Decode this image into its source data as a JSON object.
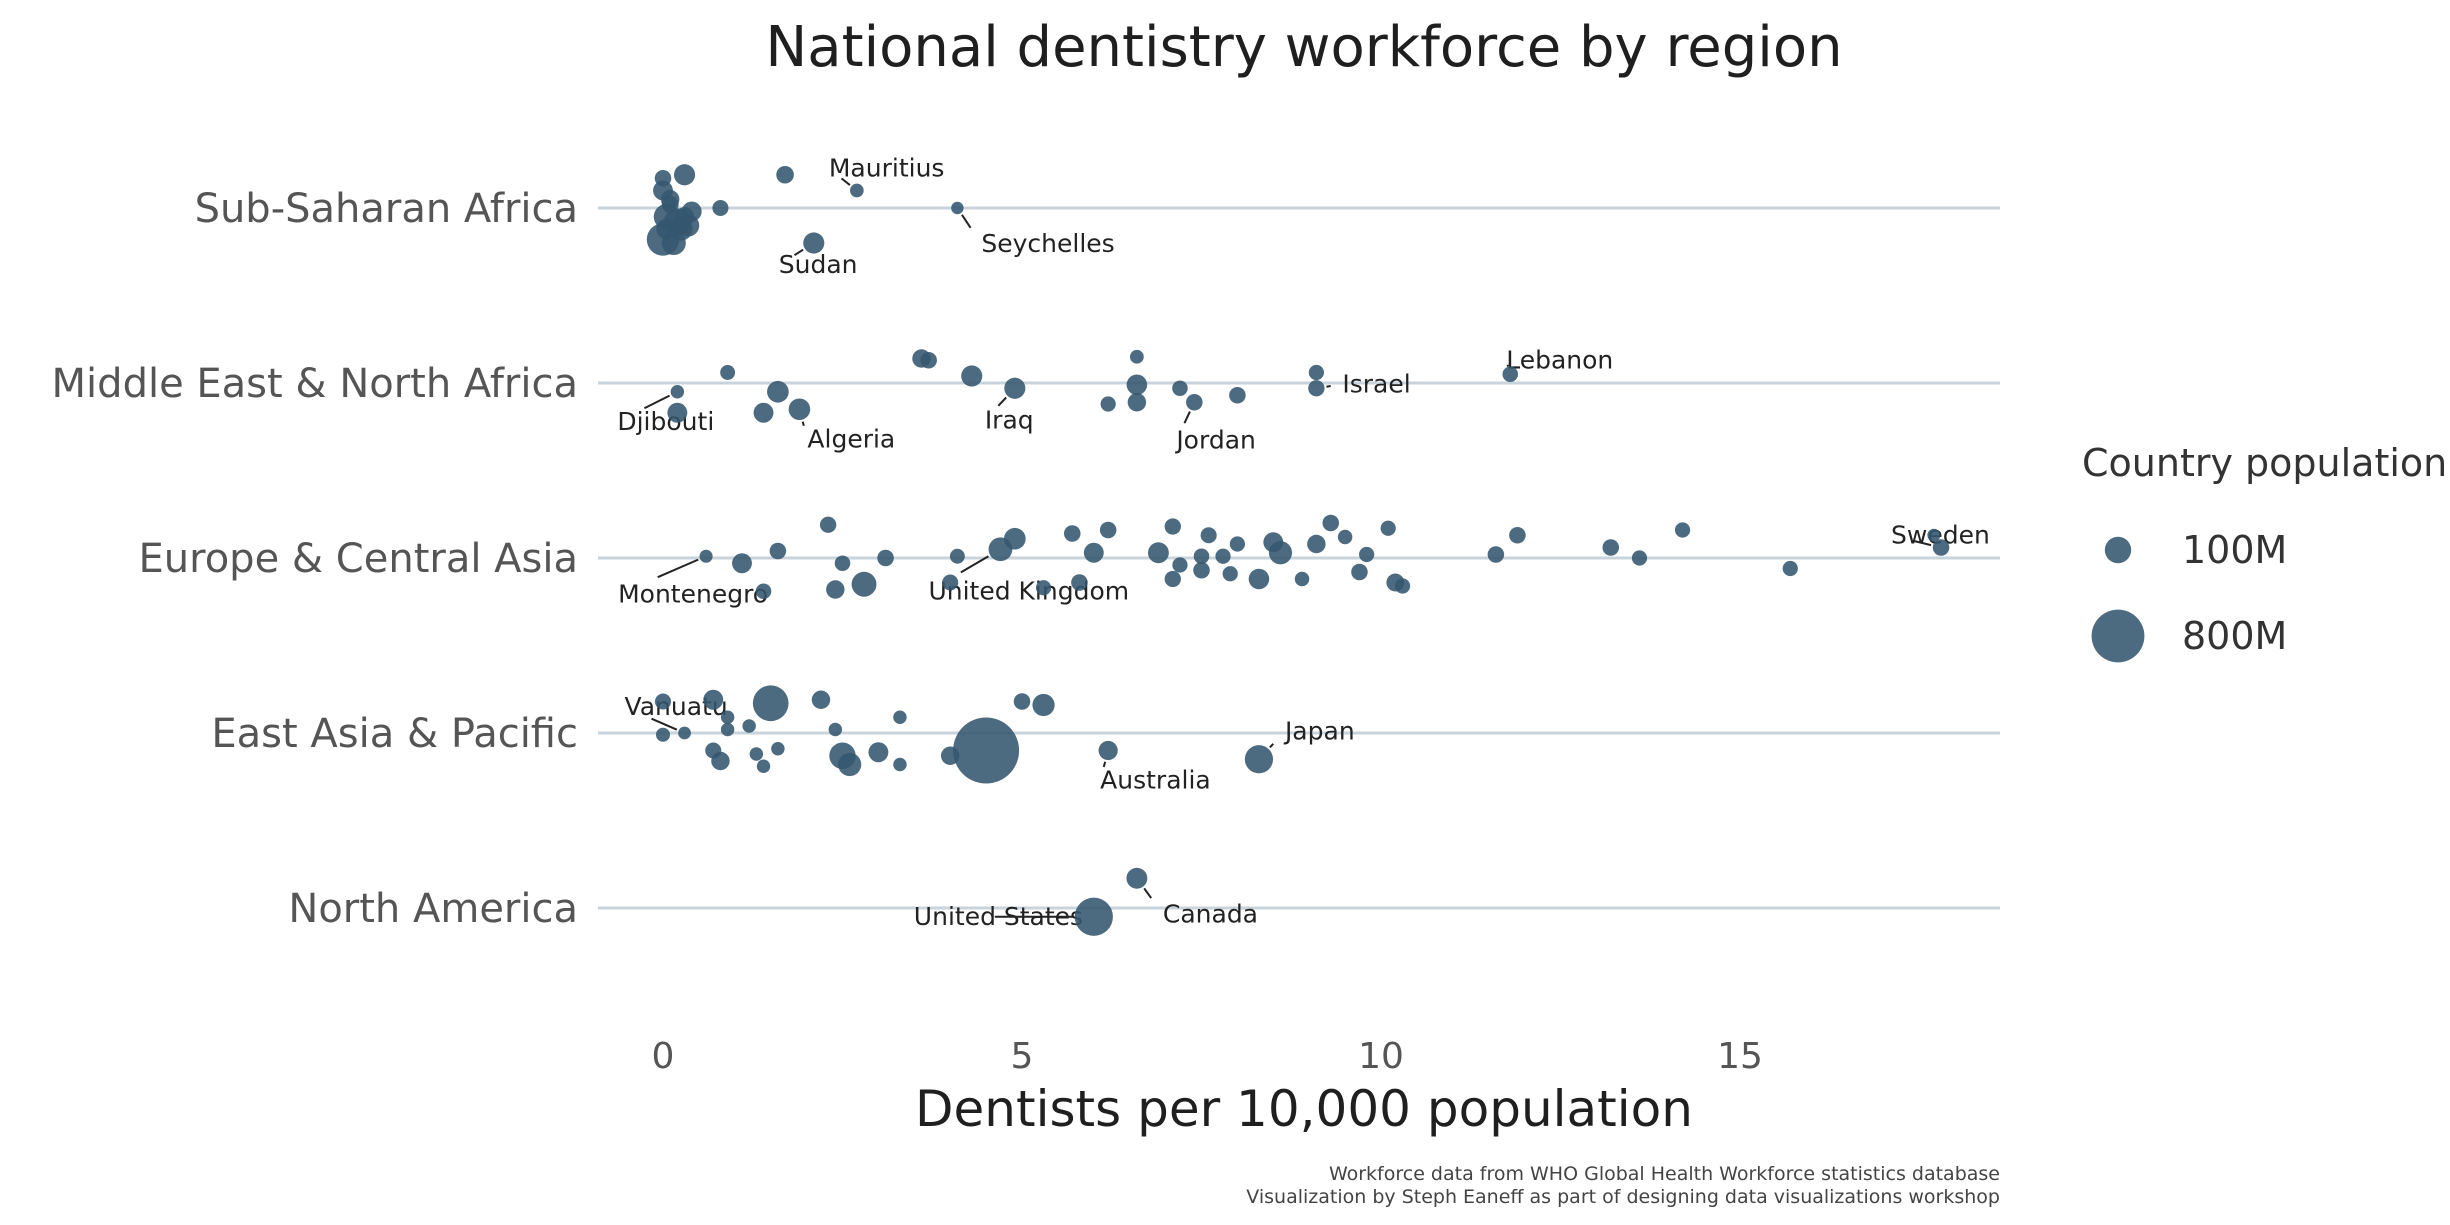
{
  "chart_data": {
    "type": "scatter",
    "title": "National dentistry workforce by region",
    "xlabel": "Dentists per 10,000 population",
    "ylabel": "",
    "xlim": [
      -0.9,
      18.6
    ],
    "x_ticks": [
      0,
      5,
      10,
      15
    ],
    "categories": [
      "Sub-Saharan Africa",
      "Middle East & North Africa",
      "Europe & Central Asia",
      "East Asia & Pacific",
      "North America"
    ],
    "grid": "horizontal region lines only",
    "point_color": "#34566e",
    "legend": {
      "title": "Country population",
      "placement": "right",
      "entries": [
        {
          "label": "100M",
          "population_m": 100
        },
        {
          "label": "800M",
          "population_m": 800
        }
      ]
    },
    "caption": [
      "Workforce data from WHO Global Health Workforce statistics database",
      "Visualization by Steph Eaneff as part of designing data visualizations workshop"
    ],
    "series": [
      {
        "region": "Sub-Saharan Africa",
        "points": [
          {
            "x": 0.0,
            "jitter": 0.17,
            "pop": 10
          },
          {
            "x": 0.3,
            "jitter": 0.19,
            "pop": 40
          },
          {
            "x": 1.7,
            "jitter": 0.19,
            "pop": 15
          },
          {
            "x": 2.7,
            "jitter": 0.1,
            "pop": 1.3,
            "label": "Mauritius"
          },
          {
            "x": 0.8,
            "jitter": 0.0,
            "pop": 8
          },
          {
            "x": 4.1,
            "jitter": 0.0,
            "pop": 0.1,
            "label": "Seychelles"
          },
          {
            "x": 2.1,
            "jitter": -0.2,
            "pop": 40,
            "label": "Sudan"
          },
          {
            "x": 0.0,
            "jitter": 0.1,
            "pop": 30
          },
          {
            "x": 0.1,
            "jitter": 0.05,
            "pop": 20
          },
          {
            "x": 0.05,
            "jitter": -0.05,
            "pop": 90
          },
          {
            "x": 0.2,
            "jitter": -0.08,
            "pop": 110
          },
          {
            "x": 0.25,
            "jitter": -0.12,
            "pop": 60
          },
          {
            "x": 0.35,
            "jitter": -0.1,
            "pop": 50
          },
          {
            "x": 0.0,
            "jitter": -0.18,
            "pop": 200
          },
          {
            "x": 0.15,
            "jitter": -0.2,
            "pop": 70
          },
          {
            "x": 0.3,
            "jitter": -0.05,
            "pop": 25
          },
          {
            "x": 0.4,
            "jitter": -0.02,
            "pop": 30
          },
          {
            "x": 0.1,
            "jitter": 0.02,
            "pop": 12
          },
          {
            "x": 0.05,
            "jitter": -0.12,
            "pop": 35
          }
        ]
      },
      {
        "region": "Middle East & North Africa",
        "points": [
          {
            "x": 0.2,
            "jitter": -0.05,
            "pop": 1.0,
            "label": "Djibouti"
          },
          {
            "x": 0.2,
            "jitter": -0.17,
            "pop": 30
          },
          {
            "x": 0.9,
            "jitter": 0.06,
            "pop": 4
          },
          {
            "x": 1.6,
            "jitter": -0.05,
            "pop": 45
          },
          {
            "x": 1.4,
            "jitter": -0.17,
            "pop": 30
          },
          {
            "x": 1.9,
            "jitter": -0.15,
            "pop": 44,
            "label": "Algeria"
          },
          {
            "x": 3.6,
            "jitter": 0.14,
            "pop": 20
          },
          {
            "x": 3.7,
            "jitter": 0.13,
            "pop": 10
          },
          {
            "x": 4.3,
            "jitter": 0.04,
            "pop": 40
          },
          {
            "x": 4.9,
            "jitter": -0.03,
            "pop": 40,
            "label": "Iraq"
          },
          {
            "x": 6.6,
            "jitter": 0.15,
            "pop": 1.5
          },
          {
            "x": 6.6,
            "jitter": -0.01,
            "pop": 35
          },
          {
            "x": 6.6,
            "jitter": -0.11,
            "pop": 20
          },
          {
            "x": 6.2,
            "jitter": -0.12,
            "pop": 5
          },
          {
            "x": 7.2,
            "jitter": -0.03,
            "pop": 6
          },
          {
            "x": 7.4,
            "jitter": -0.11,
            "pop": 10,
            "label": "Jordan"
          },
          {
            "x": 8.0,
            "jitter": -0.07,
            "pop": 10
          },
          {
            "x": 9.1,
            "jitter": 0.06,
            "pop": 5
          },
          {
            "x": 9.1,
            "jitter": -0.03,
            "pop": 9,
            "label": "Israel"
          },
          {
            "x": 11.8,
            "jitter": 0.05,
            "pop": 6,
            "label": "Lebanon"
          }
        ]
      },
      {
        "region": "Europe & Central Asia",
        "points": [
          {
            "x": 0.6,
            "jitter": 0.01,
            "pop": 0.6,
            "label": "Montenegro"
          },
          {
            "x": 1.1,
            "jitter": -0.03,
            "pop": 30
          },
          {
            "x": 1.4,
            "jitter": -0.19,
            "pop": 6
          },
          {
            "x": 1.6,
            "jitter": 0.04,
            "pop": 10
          },
          {
            "x": 2.3,
            "jitter": 0.19,
            "pop": 9
          },
          {
            "x": 2.4,
            "jitter": -0.18,
            "pop": 20
          },
          {
            "x": 2.5,
            "jitter": -0.03,
            "pop": 6
          },
          {
            "x": 2.8,
            "jitter": -0.15,
            "pop": 80
          },
          {
            "x": 3.1,
            "jitter": 0.0,
            "pop": 10
          },
          {
            "x": 4.0,
            "jitter": -0.14,
            "pop": 8
          },
          {
            "x": 4.1,
            "jitter": 0.01,
            "pop": 4
          },
          {
            "x": 4.7,
            "jitter": 0.05,
            "pop": 67,
            "label": "United Kingdom"
          },
          {
            "x": 4.9,
            "jitter": 0.11,
            "pop": 45
          },
          {
            "x": 5.3,
            "jitter": -0.17,
            "pop": 5
          },
          {
            "x": 5.7,
            "jitter": 0.14,
            "pop": 10
          },
          {
            "x": 5.8,
            "jitter": -0.14,
            "pop": 10
          },
          {
            "x": 6.0,
            "jitter": 0.03,
            "pop": 30
          },
          {
            "x": 6.2,
            "jitter": 0.16,
            "pop": 10
          },
          {
            "x": 6.9,
            "jitter": 0.03,
            "pop": 38
          },
          {
            "x": 7.1,
            "jitter": -0.12,
            "pop": 9
          },
          {
            "x": 7.1,
            "jitter": 0.18,
            "pop": 9
          },
          {
            "x": 7.2,
            "jitter": -0.04,
            "pop": 5
          },
          {
            "x": 7.5,
            "jitter": -0.07,
            "pop": 10
          },
          {
            "x": 7.5,
            "jitter": 0.01,
            "pop": 6
          },
          {
            "x": 7.6,
            "jitter": 0.13,
            "pop": 8
          },
          {
            "x": 7.8,
            "jitter": 0.01,
            "pop": 5
          },
          {
            "x": 7.9,
            "jitter": -0.09,
            "pop": 5
          },
          {
            "x": 8.0,
            "jitter": 0.08,
            "pop": 5
          },
          {
            "x": 8.3,
            "jitter": -0.12,
            "pop": 35
          },
          {
            "x": 8.5,
            "jitter": 0.09,
            "pop": 30
          },
          {
            "x": 8.6,
            "jitter": 0.03,
            "pop": 60
          },
          {
            "x": 8.9,
            "jitter": -0.12,
            "pop": 3
          },
          {
            "x": 9.1,
            "jitter": 0.08,
            "pop": 20
          },
          {
            "x": 9.3,
            "jitter": 0.2,
            "pop": 10
          },
          {
            "x": 9.5,
            "jitter": 0.12,
            "pop": 3
          },
          {
            "x": 9.7,
            "jitter": -0.08,
            "pop": 10
          },
          {
            "x": 9.8,
            "jitter": 0.02,
            "pop": 5
          },
          {
            "x": 10.1,
            "jitter": 0.17,
            "pop": 5
          },
          {
            "x": 10.2,
            "jitter": -0.14,
            "pop": 17
          },
          {
            "x": 10.3,
            "jitter": -0.16,
            "pop": 5
          },
          {
            "x": 11.6,
            "jitter": 0.02,
            "pop": 10
          },
          {
            "x": 11.9,
            "jitter": 0.13,
            "pop": 10
          },
          {
            "x": 13.2,
            "jitter": 0.06,
            "pop": 10
          },
          {
            "x": 13.6,
            "jitter": 0.0,
            "pop": 5
          },
          {
            "x": 14.2,
            "jitter": 0.16,
            "pop": 5
          },
          {
            "x": 15.7,
            "jitter": -0.06,
            "pop": 5
          },
          {
            "x": 17.7,
            "jitter": 0.13,
            "pop": 0.4
          },
          {
            "x": 17.8,
            "jitter": 0.06,
            "pop": 10,
            "label": "Sweden"
          }
        ]
      },
      {
        "region": "East Asia & Pacific",
        "points": [
          {
            "x": 0.0,
            "jitter": 0.18,
            "pop": 8
          },
          {
            "x": 0.0,
            "jitter": -0.01,
            "pop": 2
          },
          {
            "x": 0.3,
            "jitter": 0.0,
            "pop": 0.3,
            "label": "Vanuatu"
          },
          {
            "x": 0.7,
            "jitter": 0.19,
            "pop": 30
          },
          {
            "x": 0.7,
            "jitter": -0.1,
            "pop": 8
          },
          {
            "x": 0.8,
            "jitter": -0.16,
            "pop": 20
          },
          {
            "x": 0.9,
            "jitter": 0.09,
            "pop": 1
          },
          {
            "x": 0.9,
            "jitter": 0.02,
            "pop": 1
          },
          {
            "x": 1.2,
            "jitter": 0.04,
            "pop": 1
          },
          {
            "x": 1.3,
            "jitter": -0.12,
            "pop": 1
          },
          {
            "x": 1.4,
            "jitter": -0.19,
            "pop": 1
          },
          {
            "x": 1.5,
            "jitter": 0.17,
            "pop": 270
          },
          {
            "x": 1.6,
            "jitter": -0.09,
            "pop": 1
          },
          {
            "x": 2.2,
            "jitter": 0.19,
            "pop": 20
          },
          {
            "x": 2.4,
            "jitter": 0.02,
            "pop": 1
          },
          {
            "x": 2.5,
            "jitter": -0.13,
            "pop": 100
          },
          {
            "x": 2.6,
            "jitter": -0.18,
            "pop": 60
          },
          {
            "x": 3.0,
            "jitter": -0.11,
            "pop": 30
          },
          {
            "x": 3.3,
            "jitter": 0.09,
            "pop": 1
          },
          {
            "x": 3.3,
            "jitter": -0.18,
            "pop": 1
          },
          {
            "x": 4.0,
            "jitter": -0.13,
            "pop": 20
          },
          {
            "x": 4.5,
            "jitter": -0.1,
            "pop": 1400
          },
          {
            "x": 5.0,
            "jitter": 0.18,
            "pop": 10
          },
          {
            "x": 5.3,
            "jitter": 0.16,
            "pop": 50
          },
          {
            "x": 6.2,
            "jitter": -0.1,
            "pop": 25,
            "label": "Australia"
          },
          {
            "x": 8.3,
            "jitter": -0.15,
            "pop": 126,
            "label": "Japan"
          }
        ]
      },
      {
        "region": "North America",
        "points": [
          {
            "x": 6.6,
            "jitter": 0.17,
            "pop": 38,
            "label": "Canada"
          },
          {
            "x": 6.0,
            "jitter": -0.05,
            "pop": 330,
            "label": "United States"
          }
        ]
      }
    ]
  }
}
